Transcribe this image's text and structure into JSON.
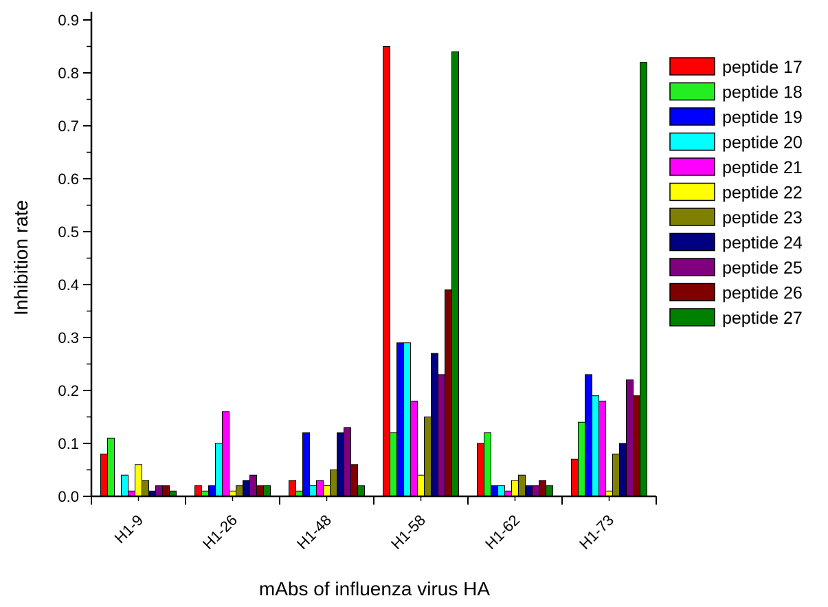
{
  "chart_data": {
    "type": "bar",
    "title": "",
    "xlabel": "mAbs of influenza virus HA",
    "ylabel": "Inhibition rate",
    "ylim": [
      0,
      0.9
    ],
    "yticks": [
      "0.0",
      "0.1",
      "0.2",
      "0.3",
      "0.4",
      "0.5",
      "0.6",
      "0.7",
      "0.8",
      "0.9"
    ],
    "categories": [
      "H1-9",
      "H1-26",
      "H1-48",
      "H1-58",
      "H1-62",
      "H1-73"
    ],
    "legend_position": "right",
    "grid": false,
    "series": [
      {
        "name": "peptide 17",
        "color": "#ff0000",
        "values": [
          0.08,
          0.02,
          0.03,
          0.85,
          0.1,
          0.07
        ]
      },
      {
        "name": "peptide 18",
        "color": "#22ee22",
        "values": [
          0.11,
          0.01,
          0.01,
          0.12,
          0.12,
          0.14
        ]
      },
      {
        "name": "peptide 19",
        "color": "#0000ff",
        "values": [
          0.0,
          0.02,
          0.12,
          0.29,
          0.02,
          0.23
        ]
      },
      {
        "name": "peptide 20",
        "color": "#00ffff",
        "values": [
          0.04,
          0.1,
          0.02,
          0.29,
          0.02,
          0.19
        ]
      },
      {
        "name": "peptide 21",
        "color": "#ff00ff",
        "values": [
          0.01,
          0.16,
          0.03,
          0.18,
          0.01,
          0.18
        ]
      },
      {
        "name": "peptide 22",
        "color": "#ffff00",
        "values": [
          0.06,
          0.01,
          0.02,
          0.04,
          0.03,
          0.01
        ]
      },
      {
        "name": "peptide 23",
        "color": "#808000",
        "values": [
          0.03,
          0.02,
          0.05,
          0.15,
          0.04,
          0.08
        ]
      },
      {
        "name": "peptide 24",
        "color": "#000080",
        "values": [
          0.01,
          0.03,
          0.12,
          0.27,
          0.02,
          0.1
        ]
      },
      {
        "name": "peptide 25",
        "color": "#800080",
        "values": [
          0.02,
          0.04,
          0.13,
          0.23,
          0.02,
          0.22
        ]
      },
      {
        "name": "peptide 26",
        "color": "#800000",
        "values": [
          0.02,
          0.02,
          0.06,
          0.39,
          0.03,
          0.19
        ]
      },
      {
        "name": "peptide 27",
        "color": "#008000",
        "values": [
          0.01,
          0.02,
          0.02,
          0.84,
          0.02,
          0.82
        ]
      }
    ]
  }
}
